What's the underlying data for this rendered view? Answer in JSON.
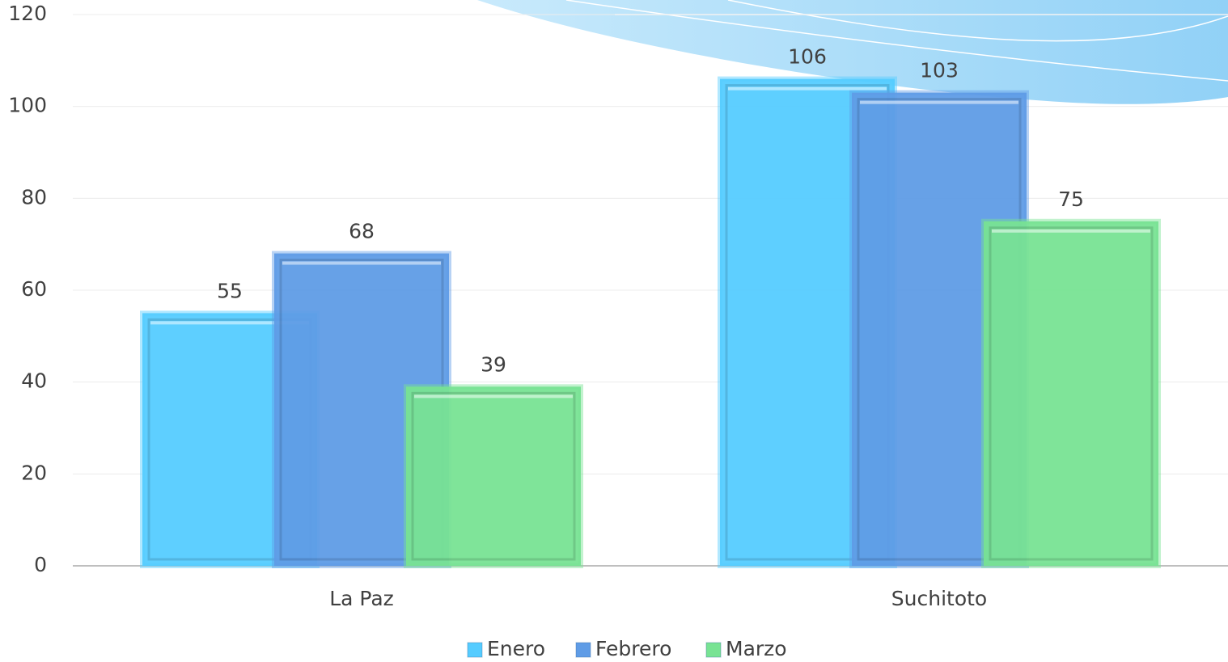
{
  "chart_data": {
    "type": "bar",
    "categories": [
      "La Paz",
      "Suchitoto"
    ],
    "series": [
      {
        "name": "Enero",
        "color": "#55ccff",
        "values": [
          55,
          106
        ]
      },
      {
        "name": "Febrero",
        "color": "#5f9ce6",
        "values": [
          68,
          103
        ]
      },
      {
        "name": "Marzo",
        "color": "#78e393",
        "values": [
          39,
          75
        ]
      }
    ],
    "ylim": [
      0,
      120
    ],
    "yticks": [
      0,
      20,
      40,
      60,
      80,
      100,
      120
    ],
    "grid": true,
    "legend": "bottom"
  }
}
